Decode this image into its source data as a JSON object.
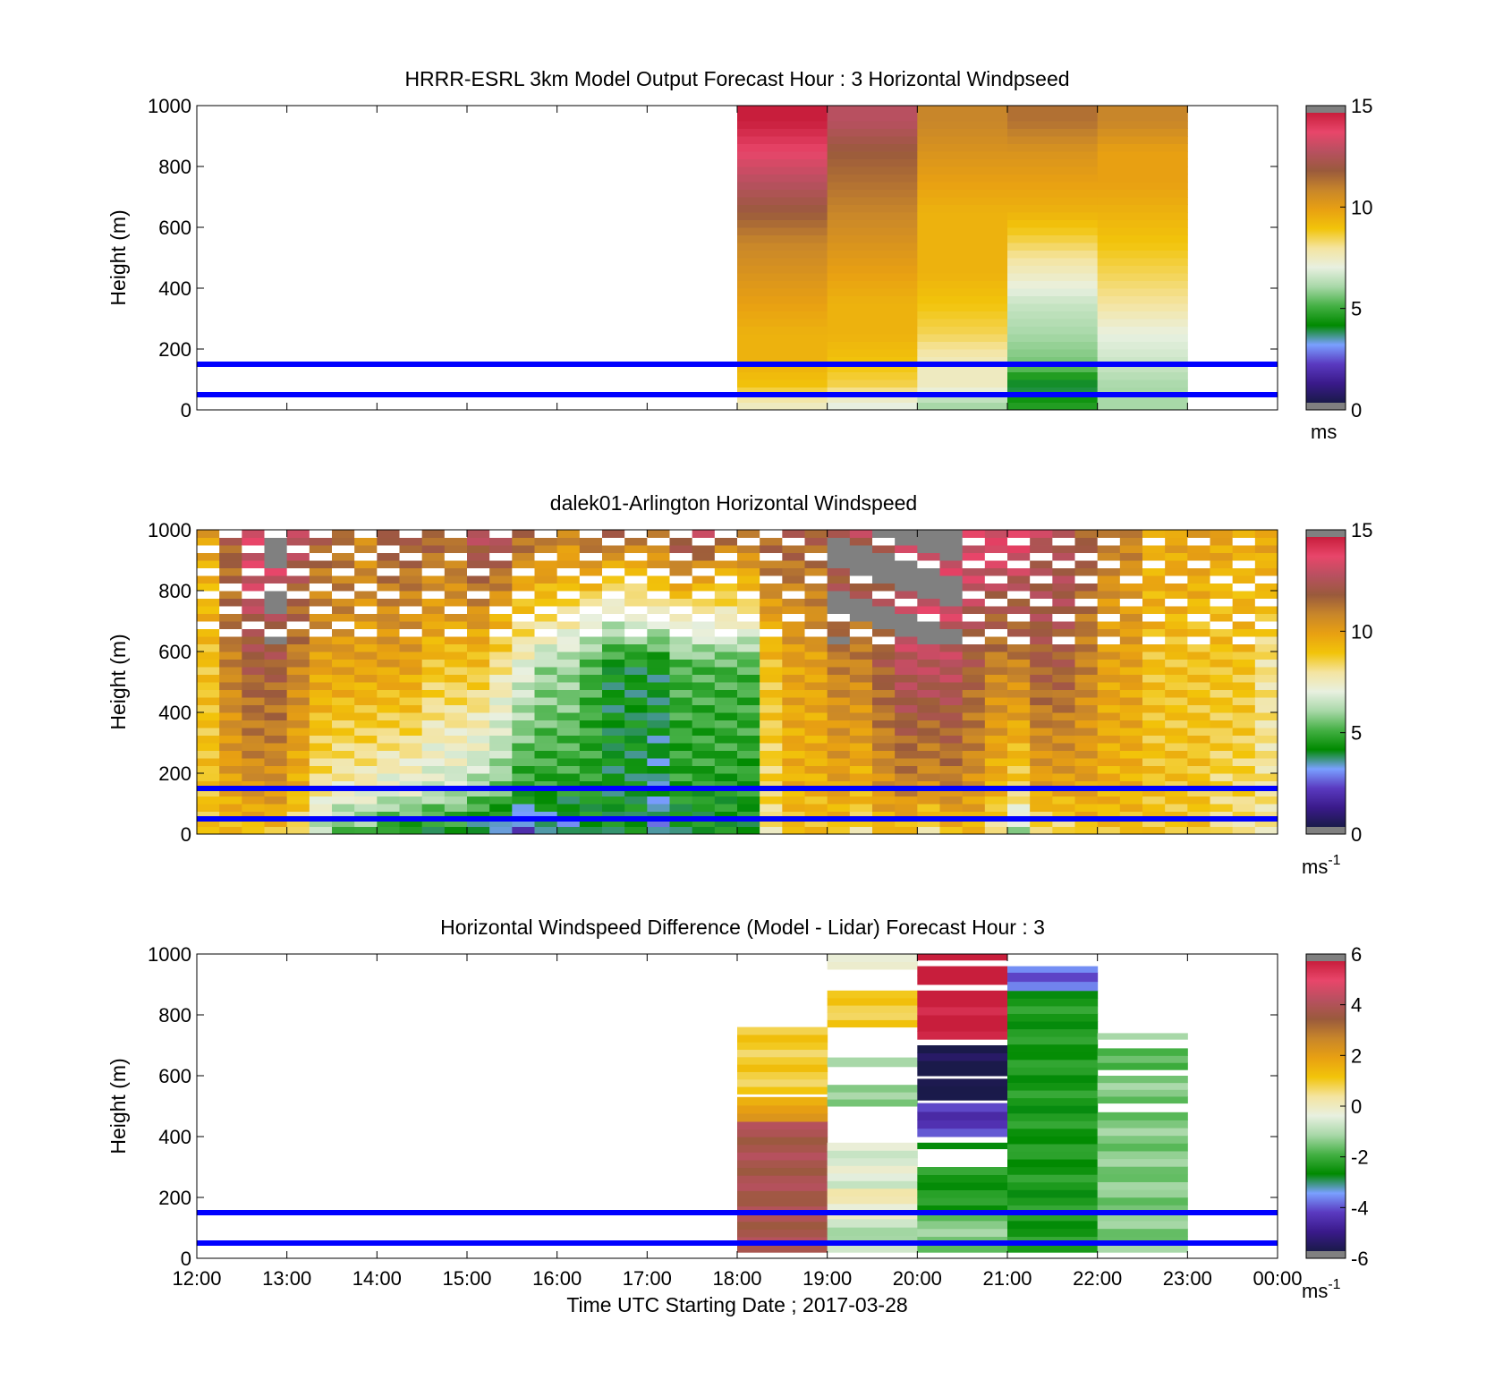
{
  "figure": {
    "xlabel": "Time UTC  Starting Date ; 2017-03-28",
    "x_ticks": [
      "12:00",
      "13:00",
      "14:00",
      "15:00",
      "16:00",
      "17:00",
      "18:00",
      "19:00",
      "20:00",
      "21:00",
      "22:00",
      "23:00",
      "00:00"
    ],
    "y_ticks": [
      "0",
      "200",
      "400",
      "600",
      "800",
      "1000"
    ],
    "reference_lines_m": [
      50,
      150
    ],
    "reference_line_color": "#0000ff",
    "nodata_color": "#808080",
    "colormap_stops": [
      "#1a1a4a",
      "#3a1a8a",
      "#5a3ac0",
      "#7aa0ff",
      "#008a00",
      "#44b044",
      "#a8d8a8",
      "#e8f0e0",
      "#f4e4a0",
      "#f2c40a",
      "#e8a012",
      "#c8862a",
      "#9a5a3c",
      "#b85060",
      "#e8466a",
      "#c81e3c"
    ]
  },
  "chart_data": [
    {
      "type": "heatmap",
      "title": "HRRR-ESRL 3km Model Output   Forecast Hour : 3 Horizontal Windpseed",
      "ylabel": "Height (m)",
      "ylim": [
        0,
        1000
      ],
      "x_range_hours": [
        12,
        24
      ],
      "cbar_ticks": [
        "0",
        "5",
        "10",
        "15"
      ],
      "cbar_unit": "ms",
      "clim": [
        0,
        15
      ],
      "hourly_columns_start": [
        18,
        19,
        20,
        21,
        22
      ],
      "profile_heights_m": [
        25,
        75,
        150,
        250,
        350,
        450,
        550,
        650,
        750,
        850,
        950
      ],
      "values": [
        [
          7.5,
          7.0,
          6.0,
          4.5,
          6.0
        ],
        [
          9.0,
          8.5,
          7.5,
          3.5,
          6.0
        ],
        [
          9.5,
          9.0,
          7.5,
          5.5,
          6.5
        ],
        [
          9.5,
          9.5,
          8.5,
          6.0,
          7.0
        ],
        [
          10.0,
          9.5,
          9.0,
          6.5,
          8.0
        ],
        [
          10.5,
          10.0,
          9.5,
          7.5,
          8.5
        ],
        [
          11.0,
          10.5,
          9.5,
          8.5,
          9.0
        ],
        [
          12.0,
          11.0,
          9.5,
          9.5,
          9.5
        ],
        [
          13.0,
          11.5,
          10.0,
          10.0,
          10.0
        ],
        [
          14.0,
          12.0,
          10.5,
          10.5,
          10.0
        ],
        [
          15.0,
          13.0,
          11.0,
          11.5,
          11.0
        ]
      ]
    },
    {
      "type": "heatmap",
      "title": "dalek01-Arlington  Horizontal Windspeed",
      "ylabel": "Height (m)",
      "ylim": [
        0,
        1000
      ],
      "x_range_hours": [
        12,
        24
      ],
      "cbar_ticks": [
        "0",
        "5",
        "10",
        "15"
      ],
      "cbar_unit": "ms",
      "cbar_unit_exp": "-1",
      "clim": [
        0,
        15
      ],
      "time_hours": [
        12.25,
        12.5,
        12.75,
        13.0,
        13.25,
        13.5,
        13.75,
        14.0,
        14.25,
        14.5,
        14.75,
        15.0,
        15.25,
        15.5,
        15.75,
        16.0,
        16.25,
        16.5,
        16.75,
        17.0,
        17.25,
        17.5,
        17.75,
        18.0,
        18.25,
        18.5,
        18.75,
        19.0,
        19.25,
        19.5,
        19.75,
        20.0,
        20.25,
        20.5,
        20.75,
        21.0,
        21.25,
        21.5,
        21.75,
        22.0,
        22.25,
        22.5,
        22.75,
        23.0,
        23.25,
        23.5,
        23.75,
        24.0
      ],
      "surface_speed": [
        9,
        9,
        9,
        9,
        8,
        6,
        5,
        5,
        4,
        4,
        4,
        4,
        3,
        3,
        2,
        3,
        3,
        4,
        4,
        4,
        3,
        4,
        4,
        4,
        4,
        8,
        9,
        9,
        9,
        8,
        9,
        9,
        8,
        9,
        9,
        8,
        6,
        8,
        8,
        9,
        9,
        9,
        9,
        9,
        9,
        8,
        8,
        8
      ],
      "mid_speed": [
        9,
        11,
        12,
        12,
        11,
        10,
        10,
        10,
        10,
        10,
        9,
        9,
        9,
        8,
        7,
        6,
        6,
        5,
        4,
        4,
        4,
        5,
        5,
        5,
        5,
        9,
        10,
        10,
        11,
        11,
        12,
        13,
        13,
        13,
        12,
        11,
        11,
        12,
        12,
        11,
        10,
        10,
        9,
        9,
        9,
        9,
        9,
        8
      ],
      "top_speed": [
        10,
        12,
        14,
        14,
        13,
        12,
        12,
        11,
        12,
        12,
        12,
        12,
        13,
        13,
        12,
        12,
        11,
        12,
        12,
        12,
        12,
        13,
        13,
        12,
        12,
        12,
        12,
        12,
        13,
        13,
        13,
        14,
        14,
        14,
        14,
        14,
        14,
        13,
        13,
        12,
        11,
        11,
        10,
        10,
        10,
        10,
        10,
        10
      ]
    },
    {
      "type": "heatmap",
      "title": "Horizontal Windspeed Difference (Model - Lidar) Forecast Hour : 3",
      "ylabel": "Height (m)",
      "ylim": [
        0,
        1000
      ],
      "x_range_hours": [
        12,
        24
      ],
      "cbar_ticks": [
        "-6",
        "-4",
        "-2",
        "0",
        "2",
        "4",
        "6"
      ],
      "cbar_unit": "ms",
      "cbar_unit_exp": "-1",
      "clim": [
        -6,
        6
      ],
      "hourly_columns_start": [
        18,
        19,
        20,
        21,
        22
      ],
      "profiles": [
        [
          [
            20,
            450,
            4
          ],
          [
            450,
            530,
            2
          ],
          [
            540,
            760,
            1
          ]
        ],
        [
          [
            20,
            130,
            -1
          ],
          [
            130,
            230,
            0
          ],
          [
            230,
            380,
            -0.5
          ],
          [
            500,
            570,
            -1.5
          ],
          [
            630,
            660,
            -1.5
          ],
          [
            760,
            880,
            1
          ],
          [
            950,
            1000,
            0
          ]
        ],
        [
          [
            20,
            150,
            -1.5
          ],
          [
            150,
            300,
            -2.5
          ],
          [
            360,
            380,
            -3
          ],
          [
            400,
            510,
            -4.5
          ],
          [
            520,
            590,
            -6
          ],
          [
            600,
            700,
            -6
          ],
          [
            720,
            880,
            6
          ],
          [
            900,
            960,
            6
          ],
          [
            980,
            1000,
            6
          ]
        ],
        [
          [
            20,
            150,
            -2.5
          ],
          [
            150,
            880,
            -2.5
          ],
          [
            880,
            940,
            -4
          ],
          [
            940,
            960,
            -3.5
          ]
        ],
        [
          [
            20,
            150,
            -1.5
          ],
          [
            150,
            480,
            -1.5
          ],
          [
            510,
            600,
            -1.5
          ],
          [
            620,
            690,
            -2
          ],
          [
            720,
            740,
            -1.5
          ]
        ]
      ]
    }
  ]
}
